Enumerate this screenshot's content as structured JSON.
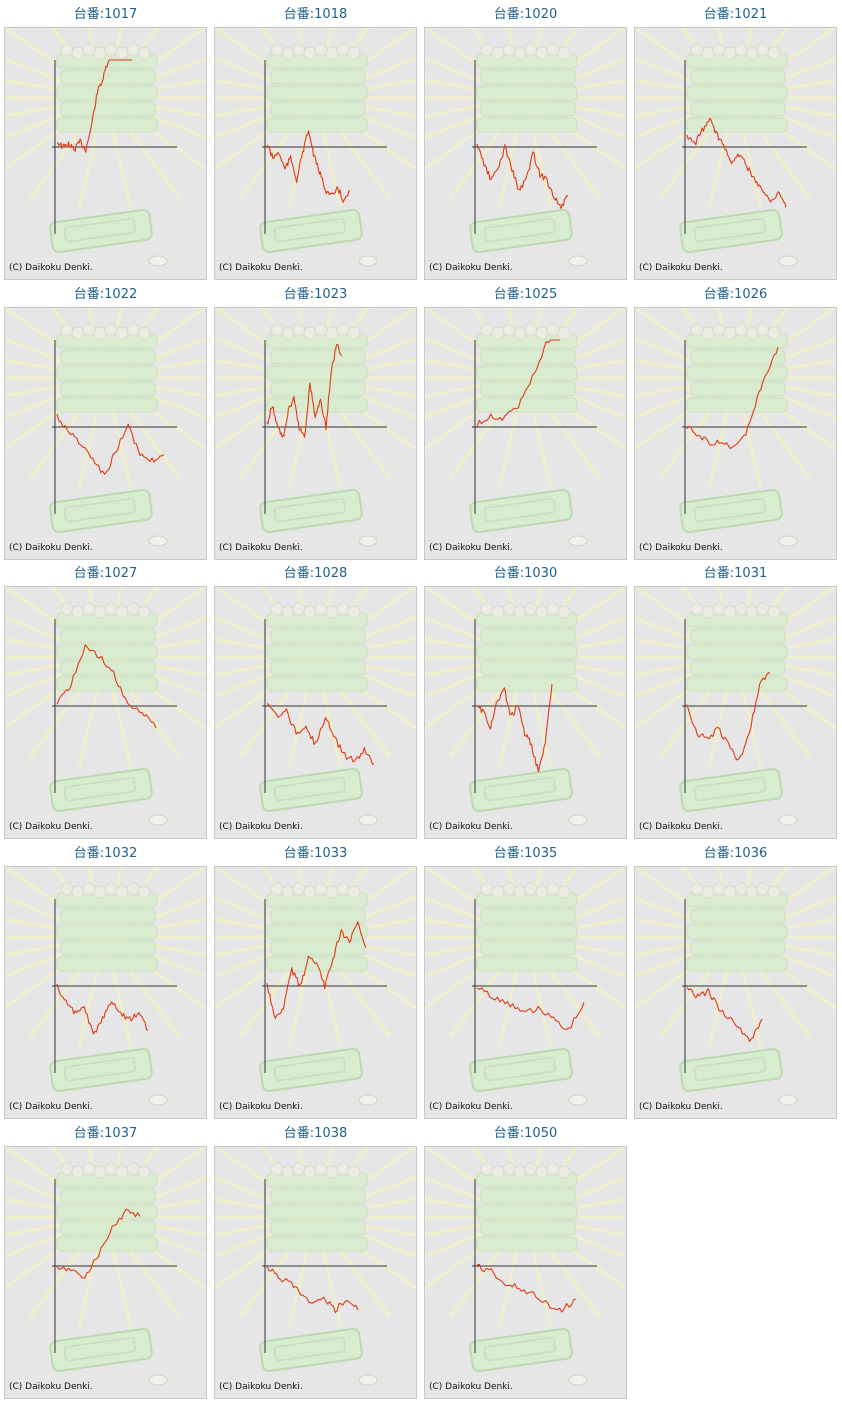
{
  "copyright": "(C) Daikoku Denki.",
  "colors": {
    "line": "#e03a14",
    "axis": "#333333",
    "title": "#1f5f8a",
    "panel": "#e6e6e6"
  },
  "machines": [
    {
      "title": "台番:1017",
      "trend": [
        0.1,
        0.0,
        0.05,
        -0.05,
        0.1,
        -0.05,
        0.4,
        1.0,
        1.25,
        1.6,
        1.7,
        1.75,
        1.65,
        1.8
      ]
    },
    {
      "title": "台番:1018",
      "trend": [
        0.05,
        -0.2,
        -0.1,
        -0.4,
        -0.2,
        -0.6,
        -0.1,
        0.3,
        -0.2,
        -0.5,
        -0.8,
        -0.9,
        -0.75,
        -1.0,
        -0.8
      ]
    },
    {
      "title": "台番:1020",
      "trend": [
        0.05,
        -0.3,
        -0.6,
        -0.4,
        0.0,
        -0.4,
        -0.8,
        -0.6,
        -0.1,
        -0.5,
        -0.6,
        -0.9,
        -1.1,
        -0.9
      ]
    },
    {
      "title": "台番:1021",
      "trend": [
        0.2,
        0.05,
        0.3,
        0.5,
        0.2,
        0.0,
        -0.3,
        -0.1,
        -0.4,
        -0.6,
        -0.8,
        -1.0,
        -0.8,
        -1.1
      ]
    },
    {
      "title": "台番:1022",
      "trend": [
        0.2,
        -0.1,
        -0.3,
        -0.6,
        -0.9,
        -0.4,
        0.0,
        -0.5,
        -0.6,
        -0.5
      ]
    },
    {
      "title": "台番:1023",
      "trend": [
        0.05,
        0.4,
        0.0,
        -0.2,
        0.3,
        0.5,
        0.0,
        -0.2,
        0.8,
        0.2,
        0.5,
        0.0,
        1.0,
        1.5,
        1.3
      ]
    },
    {
      "title": "台番:1025",
      "trend": [
        0.05,
        0.2,
        0.15,
        0.4,
        0.9,
        1.5,
        1.8
      ]
    },
    {
      "title": "台番:1026",
      "trend": [
        0.0,
        -0.15,
        -0.3,
        -0.25,
        -0.4,
        -0.2,
        0.4,
        1.0,
        1.45
      ]
    },
    {
      "title": "台番:1027",
      "trend": [
        0.05,
        0.4,
        1.1,
        0.9,
        0.6,
        0.0,
        -0.1,
        -0.4
      ]
    },
    {
      "title": "台番:1028",
      "trend": [
        0.05,
        -0.2,
        -0.1,
        -0.5,
        -0.4,
        -0.7,
        -0.2,
        -0.6,
        -0.9,
        -1.0,
        -0.8,
        -1.05
      ]
    },
    {
      "title": "台番:1030",
      "trend": [
        0.0,
        -0.1,
        -0.4,
        0.1,
        0.3,
        -0.2,
        0.0,
        -0.5,
        -0.7,
        -1.2,
        -0.7,
        0.4
      ]
    },
    {
      "title": "台番:1031",
      "trend": [
        0.0,
        -0.5,
        -0.6,
        -0.4,
        -0.7,
        -1.0,
        -0.5,
        0.4,
        0.6
      ]
    },
    {
      "title": "台番:1032",
      "trend": [
        0.0,
        -0.3,
        -0.5,
        -0.4,
        -0.9,
        -0.6,
        -0.3,
        -0.5,
        -0.6,
        -0.5,
        -0.8
      ]
    },
    {
      "title": "台番:1033",
      "trend": [
        0.0,
        -0.6,
        -0.4,
        0.3,
        0.0,
        0.5,
        0.4,
        0.0,
        0.5,
        1.0,
        0.8,
        1.2,
        0.7
      ]
    },
    {
      "title": "台番:1035",
      "trend": [
        0.0,
        -0.2,
        -0.3,
        -0.5,
        -0.4,
        -0.6,
        -0.8,
        -0.3
      ]
    },
    {
      "title": "台番:1036",
      "trend": [
        0.0,
        -0.2,
        -0.1,
        -0.4,
        -0.6,
        -0.8,
        -1.0,
        -0.6
      ]
    },
    {
      "title": "台番:1037",
      "trend": [
        0.0,
        -0.1,
        -0.2,
        0.2,
        0.7,
        1.0,
        0.9
      ]
    },
    {
      "title": "台番:1038",
      "trend": [
        0.0,
        -0.2,
        -0.3,
        -0.5,
        -0.7,
        -0.6,
        -0.8,
        -0.6,
        -0.8
      ]
    },
    {
      "title": "台番:1050",
      "trend": [
        0.0,
        -0.1,
        -0.3,
        -0.4,
        -0.5,
        -0.7,
        -0.8,
        -0.6
      ]
    }
  ]
}
